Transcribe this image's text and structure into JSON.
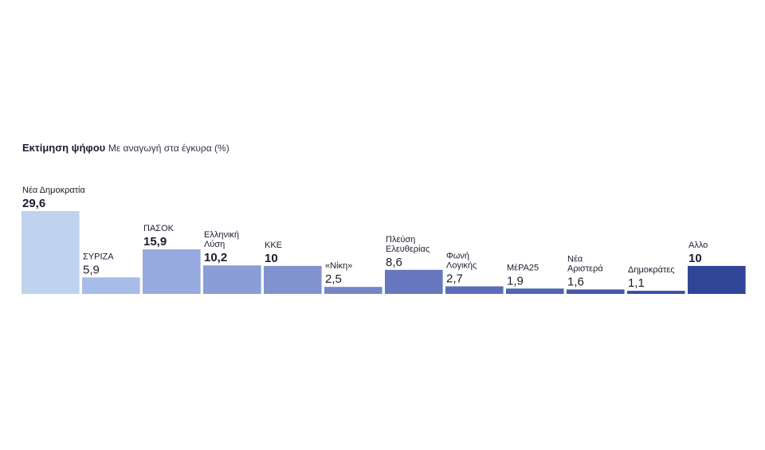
{
  "chart_data": {
    "type": "bar",
    "title": "Εκτίμηση ψήφου",
    "subtitle": "Με αναγωγή στα έγκυρα (%)",
    "xlabel": "",
    "ylabel": "",
    "ylim": [
      0,
      29.6
    ],
    "grid": false,
    "legend": "none",
    "categories": [
      [
        "Νέα Δημοκρατία"
      ],
      [
        "ΣΥΡΙΖΑ"
      ],
      [
        "ΠΑΣΟΚ"
      ],
      [
        "Ελληνική",
        "Λύση"
      ],
      [
        "ΚΚΕ"
      ],
      [
        "«Νίκη»"
      ],
      [
        "Πλεύση",
        "Ελευθερίας"
      ],
      [
        "Φωνή",
        "Λογικής"
      ],
      [
        "ΜέΡΑ25"
      ],
      [
        "Νέα",
        "Αριστερά"
      ],
      [
        "Δημοκράτες"
      ],
      [
        "Αλλο"
      ]
    ],
    "values": [
      29.6,
      5.9,
      15.9,
      10.2,
      10,
      2.5,
      8.6,
      2.7,
      1.9,
      1.6,
      1.1,
      10
    ],
    "value_labels": [
      "29,6",
      "5,9",
      "15,9",
      "10,2",
      "10",
      "2,5",
      "8,6",
      "2,7",
      "1,9",
      "1,6",
      "1,1",
      "10"
    ],
    "bold_values": [
      true,
      false,
      true,
      true,
      true,
      false,
      false,
      false,
      false,
      false,
      false,
      true
    ],
    "colors": [
      "#bfd2ee",
      "#a7bce6",
      "#96aadf",
      "#8b9dd7",
      "#8192d0",
      "#7585c8",
      "#6677bf",
      "#5c6db8",
      "#5163b1",
      "#4658a8",
      "#3a4d9f",
      "#2f4595"
    ]
  }
}
